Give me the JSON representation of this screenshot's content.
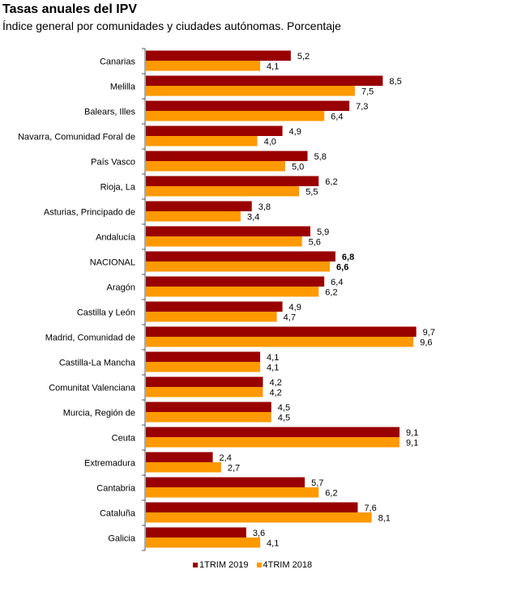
{
  "chart_data": {
    "type": "bar",
    "orientation": "horizontal",
    "title": "Tasas anuales del IPV",
    "subtitle": "Índice general por comunidades y ciudades autónomas. Porcentaje",
    "categories": [
      "Canarias",
      "Melilla",
      "Balears, Illes",
      "Navarra, Comunidad Foral de",
      "País Vasco",
      "Rioja, La",
      "Asturias, Principado de",
      "Andalucía",
      "NACIONAL",
      "Aragón",
      "Castilla y León",
      "Madrid, Comunidad de",
      "Castilla-La Mancha",
      "Comunitat Valenciana",
      "Murcia, Región de",
      "Ceuta",
      "Extremadura",
      "Cantabria",
      "Cataluña",
      "Galicia"
    ],
    "series": [
      {
        "name": "1TRIM 2019",
        "color": "#990000",
        "values": [
          5.2,
          8.5,
          7.3,
          4.9,
          5.8,
          6.2,
          3.8,
          5.9,
          6.8,
          6.4,
          4.9,
          9.7,
          4.1,
          4.2,
          4.5,
          9.1,
          2.4,
          5.7,
          7.6,
          3.6
        ],
        "labels": [
          "5,2",
          "8,5",
          "7,3",
          "4,9",
          "5,8",
          "6,2",
          "3,8",
          "5,9",
          "6,8",
          "6,4",
          "4,9",
          "9,7",
          "4,1",
          "4,2",
          "4,5",
          "9,1",
          "2,4",
          "5,7",
          "7,6",
          "3,6"
        ]
      },
      {
        "name": "4TRIM 2018",
        "color": "#FF9900",
        "values": [
          4.1,
          7.5,
          6.4,
          4.0,
          5.0,
          5.5,
          3.4,
          5.6,
          6.6,
          6.2,
          4.7,
          9.6,
          4.1,
          4.2,
          4.5,
          9.1,
          2.7,
          6.2,
          8.1,
          4.1
        ],
        "labels": [
          "4,1",
          "7,5",
          "6,4",
          "4,0",
          "5,0",
          "5,5",
          "3,4",
          "5,6",
          "6,6",
          "6,2",
          "4,7",
          "9,6",
          "4,1",
          "4,2",
          "4,5",
          "9,1",
          "2,7",
          "6,2",
          "8,1",
          "4,1"
        ]
      }
    ],
    "bold_category": "NACIONAL",
    "xlim": [
      0,
      10
    ],
    "grid": false,
    "legend_position": "bottom"
  }
}
